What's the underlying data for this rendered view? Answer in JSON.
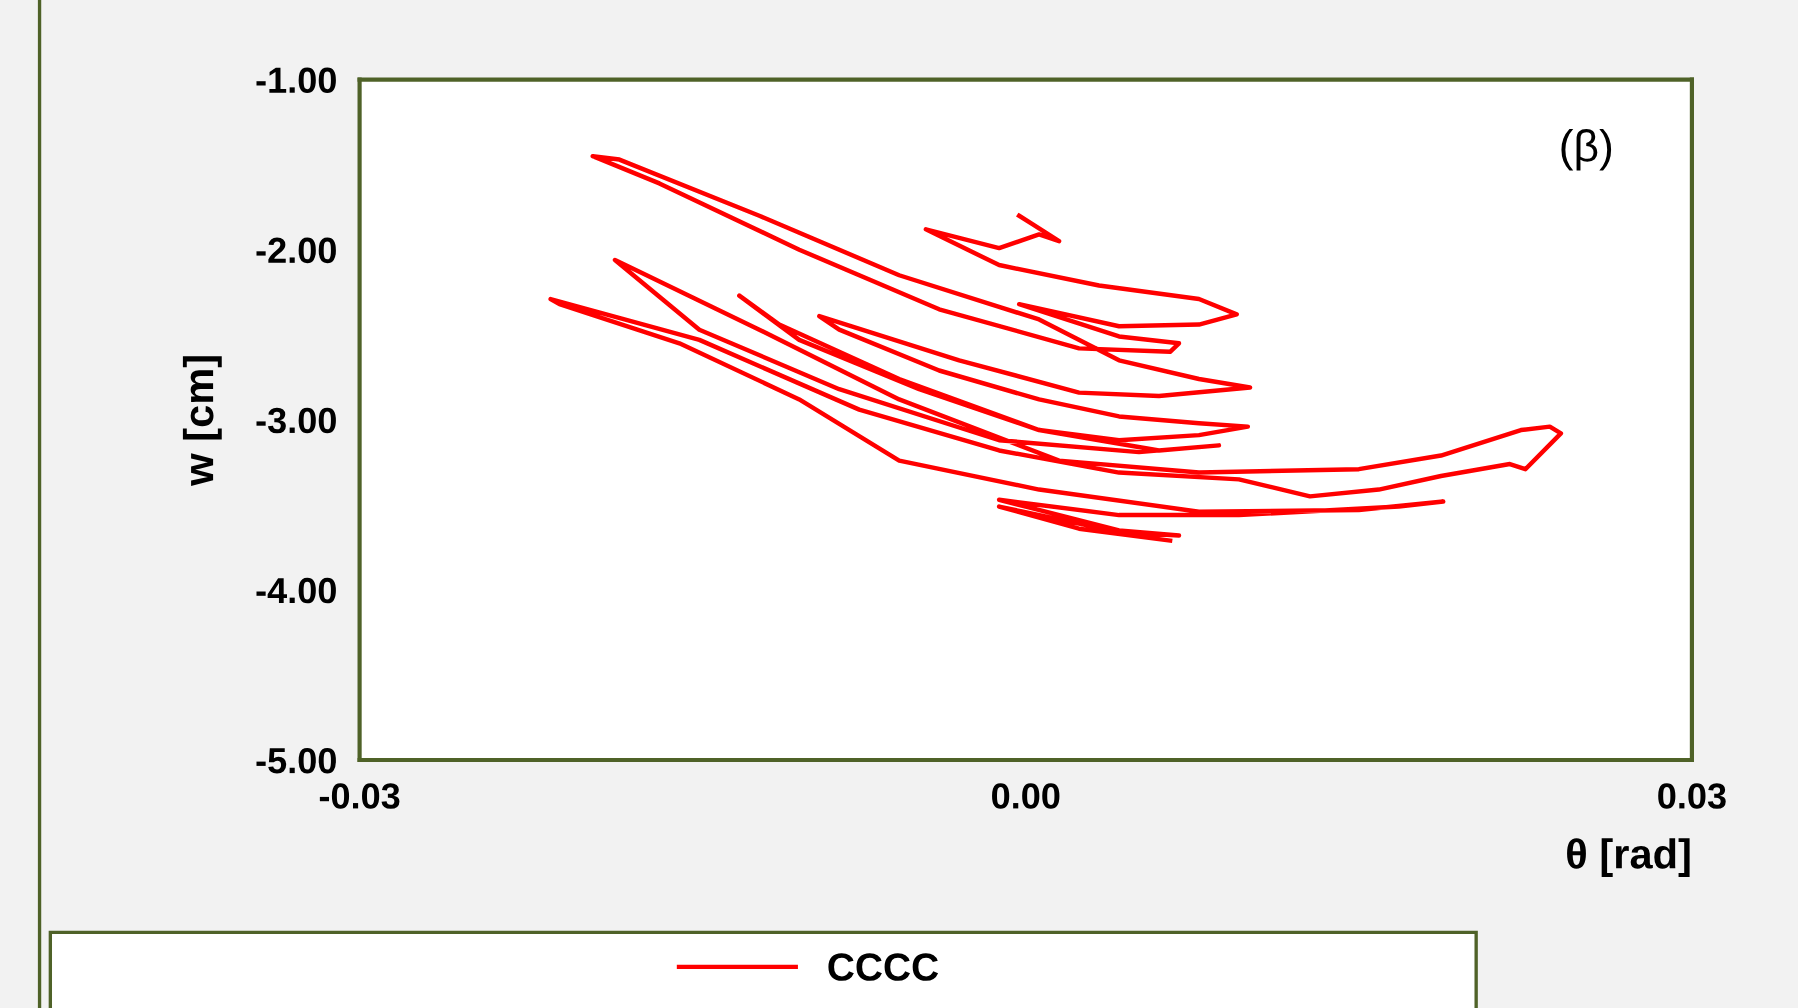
{
  "chart_data": {
    "type": "line",
    "xlabel": "θ [rad]",
    "ylabel": "w [cm]",
    "annotations": [
      "(β)"
    ],
    "xlim": [
      -0.03,
      0.03
    ],
    "ylim": [
      -5,
      -1
    ],
    "xticks": [
      {
        "value": -0.03,
        "label": "-0.03"
      },
      {
        "value": 0,
        "label": "0.00"
      },
      {
        "value": 0.03,
        "label": "0.03"
      }
    ],
    "yticks": [
      {
        "value": -5,
        "label": "-5.00"
      },
      {
        "value": -4,
        "label": "-4.00"
      },
      {
        "value": -3,
        "label": "-3.00"
      },
      {
        "value": -2,
        "label": "-2.00"
      },
      {
        "value": -1,
        "label": "-1.00"
      }
    ],
    "grid": false,
    "legend": "bottom",
    "marker": "none",
    "line_style": "solid",
    "series": [
      {
        "name": "CCCC",
        "color": "#ff0000",
        "x": [
          -0.0003,
          0.0003,
          0.0015,
          0.0006,
          -0.0012,
          -0.0045,
          -0.0012,
          0.0033,
          0.0078,
          0.0095,
          0.0078,
          0.0042,
          -0.0003,
          0.0042,
          0.0069,
          0.0065,
          0.0024,
          -0.0039,
          -0.0102,
          -0.0165,
          -0.0195,
          -0.0183,
          -0.012,
          -0.0057,
          0.0006,
          0.0042,
          0.0078,
          0.0101,
          0.006,
          0.0024,
          -0.003,
          -0.0093,
          -0.0084,
          -0.0039,
          0.0006,
          0.0042,
          0.0078,
          0.01,
          0.0078,
          0.0042,
          0.0006,
          -0.0048,
          -0.0102,
          -0.0129,
          -0.0111,
          -0.0057,
          0.0006,
          0.006,
          0.0087,
          0.0051,
          -0.0012,
          -0.0084,
          -0.0147,
          -0.0185,
          -0.0174,
          -0.012,
          -0.0057,
          0.0015,
          0.0078,
          0.015,
          0.0187,
          0.0223,
          0.0236,
          0.0241,
          0.0225,
          0.0218,
          0.0187,
          0.0159,
          0.0128,
          0.0096,
          0.0042,
          -0.0012,
          -0.0075,
          -0.0147,
          -0.0214,
          -0.021,
          -0.0156,
          -0.0102,
          -0.0057,
          0.0006,
          0.0078,
          0.015,
          0.0188,
          0.0168,
          0.0096,
          0.0042,
          -0.0012,
          0.0042,
          0.0069,
          0.0042,
          -0.0012,
          0.0024,
          0.0065
        ],
        "values": [
          -1.8,
          -1.85,
          -1.95,
          -1.91,
          -1.99,
          -1.88,
          -2.09,
          -2.21,
          -2.29,
          -2.38,
          -2.44,
          -2.45,
          -2.32,
          -2.51,
          -2.55,
          -2.6,
          -2.58,
          -2.35,
          -2.0,
          -1.61,
          -1.45,
          -1.47,
          -1.8,
          -2.15,
          -2.41,
          -2.65,
          -2.76,
          -2.81,
          -2.86,
          -2.84,
          -2.65,
          -2.39,
          -2.47,
          -2.71,
          -2.88,
          -2.98,
          -3.02,
          -3.04,
          -3.09,
          -3.12,
          -3.06,
          -2.82,
          -2.53,
          -2.27,
          -2.44,
          -2.76,
          -3.06,
          -3.18,
          -3.15,
          -3.19,
          -3.12,
          -2.82,
          -2.47,
          -2.06,
          -2.13,
          -2.47,
          -2.88,
          -3.24,
          -3.31,
          -3.29,
          -3.21,
          -3.06,
          -3.04,
          -3.08,
          -3.29,
          -3.26,
          -3.33,
          -3.41,
          -3.45,
          -3.35,
          -3.31,
          -3.18,
          -2.94,
          -2.53,
          -2.29,
          -2.32,
          -2.55,
          -2.88,
          -3.24,
          -3.41,
          -3.54,
          -3.53,
          -3.48,
          -3.51,
          -3.56,
          -3.56,
          -3.47,
          -3.65,
          -3.68,
          -3.66,
          -3.51,
          -3.64,
          -3.71
        ]
      }
    ]
  }
}
